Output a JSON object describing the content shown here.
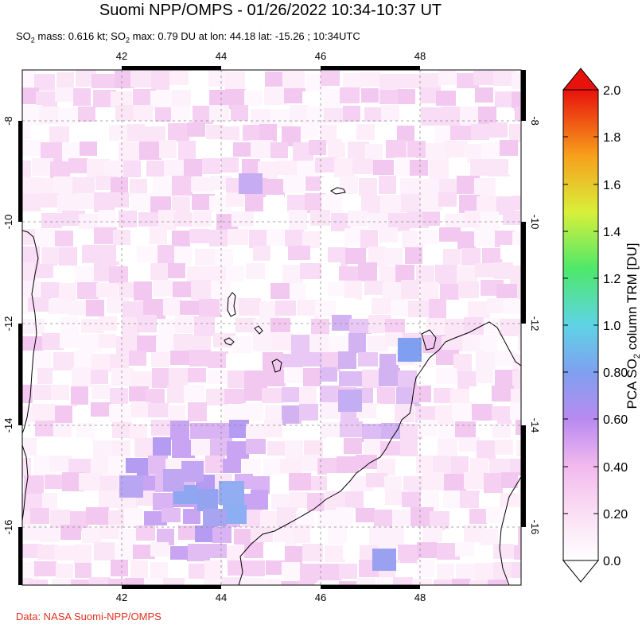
{
  "header": {
    "title": "Suomi NPP/OMPS - 01/26/2022 10:34-10:37 UT",
    "subtitle_pre": "SO",
    "subtitle_sub1": "2",
    "subtitle_mid": " mass: 0.616 kt; SO",
    "subtitle_sub2": "2",
    "subtitle_post": " max: 0.79 DU at lon: 44.18 lat: -15.26 ; 10:34UTC"
  },
  "map": {
    "lon_ticks": [
      "42",
      "44",
      "46",
      "48"
    ],
    "lat_ticks": [
      "-8",
      "-10",
      "-12",
      "-14",
      "-16"
    ],
    "lon_range": [
      40.0,
      50.0
    ],
    "lat_range": [
      -17.2,
      -7.0
    ],
    "grid": "dashed"
  },
  "colorbar": {
    "title_pre": "PCA SO",
    "title_sub": "2",
    "title_post": " column TRM [DU]",
    "ticks": [
      "2.0",
      "1.8",
      "1.6",
      "1.4",
      "1.2",
      "1.0",
      "0.80",
      "0.60",
      "0.40",
      "0.20",
      "0.0"
    ],
    "colors": [
      "#ffffff",
      "#f7c6ee",
      "#b689f0",
      "#6f9cf0",
      "#5fd3e8",
      "#4fe86a",
      "#d6f03c",
      "#f7a21c",
      "#f23a14",
      "#e8100c"
    ]
  },
  "credit": "Data: NASA Suomi-NPP/OMPS"
}
